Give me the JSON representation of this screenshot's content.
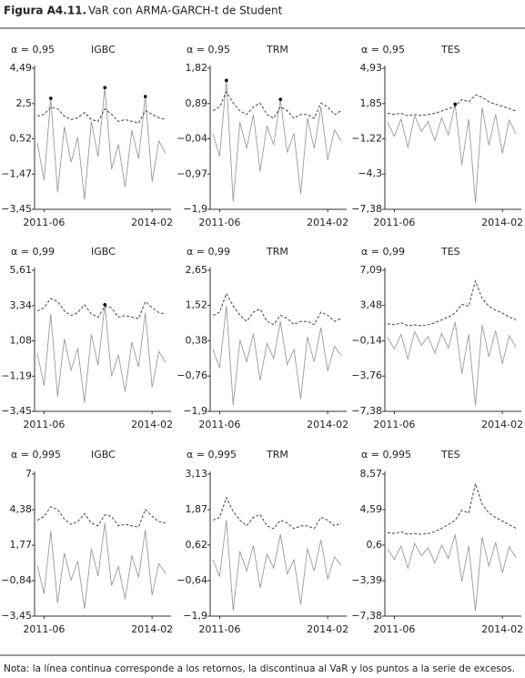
{
  "figure_label": "Figura A4.11.",
  "title": "VaR con ARMA-GARCH-t de Student",
  "note": "Nota: la línea continua corresponde a los retornos, la discontinua al VaR y los puntos a la serie de excesos.",
  "chart_data": [
    {
      "type": "line",
      "alpha_label": "α = 0,95",
      "title": "IGBC",
      "categories": [
        null,
        "2011-06",
        null,
        null,
        null,
        null,
        null,
        null,
        null,
        null,
        null,
        null,
        null,
        null,
        null,
        null,
        null,
        "2014-02",
        null,
        null
      ],
      "ylim": [
        -3.45,
        4.49
      ],
      "yticks": [
        {
          "value": -3.45,
          "label": "−3,45"
        },
        {
          "value": -1.47,
          "label": "−1,47"
        },
        {
          "value": 0.52,
          "label": "0,52"
        },
        {
          "value": 2.5,
          "label": "2,5"
        },
        {
          "value": 4.49,
          "label": "4,49"
        }
      ],
      "series": [
        {
          "color": "#9a9a9a",
          "style": "solid",
          "values": [
            0.3,
            -1.8,
            2.8,
            -2.5,
            1.2,
            -0.8,
            0.6,
            -2.9,
            1.5,
            -0.5,
            3.4,
            -1.2,
            0.2,
            -2.2,
            1.0,
            -0.6,
            2.9,
            -1.9,
            0.4,
            -0.3
          ]
        },
        {
          "color": "#444444",
          "style": "dashed",
          "values": [
            1.8,
            1.9,
            2.3,
            2.2,
            1.8,
            1.6,
            1.7,
            2.0,
            1.6,
            1.5,
            2.2,
            1.9,
            1.5,
            1.6,
            1.5,
            1.4,
            2.1,
            1.9,
            1.7,
            1.6
          ]
        },
        {
          "color": "#000000",
          "style": "points",
          "values": [
            null,
            null,
            2.8,
            null,
            null,
            null,
            null,
            null,
            null,
            null,
            3.4,
            null,
            null,
            null,
            null,
            null,
            2.9,
            null,
            null,
            null
          ]
        }
      ]
    },
    {
      "type": "line",
      "alpha_label": "α = 0,95",
      "title": "TRM",
      "categories": [
        null,
        "2011-06",
        null,
        null,
        null,
        null,
        null,
        null,
        null,
        null,
        null,
        null,
        null,
        null,
        null,
        null,
        null,
        "2014-02",
        null,
        null
      ],
      "ylim": [
        -1.9,
        1.82
      ],
      "yticks": [
        {
          "value": -1.9,
          "label": "−1,9"
        },
        {
          "value": -0.97,
          "label": "−0,97"
        },
        {
          "value": -0.04,
          "label": "−0,04"
        },
        {
          "value": 0.89,
          "label": "0,89"
        },
        {
          "value": 1.82,
          "label": "1,82"
        }
      ],
      "series": [
        {
          "color": "#9a9a9a",
          "style": "solid",
          "values": [
            0.1,
            -0.5,
            1.5,
            -1.7,
            0.4,
            -0.3,
            0.6,
            -0.9,
            0.3,
            -0.2,
            1.0,
            -0.4,
            0.1,
            -1.5,
            0.5,
            -0.3,
            0.8,
            -0.6,
            0.2,
            -0.1
          ]
        },
        {
          "color": "#444444",
          "style": "dashed",
          "values": [
            0.7,
            0.8,
            1.2,
            0.9,
            0.7,
            0.6,
            0.8,
            0.9,
            0.6,
            0.5,
            0.8,
            0.7,
            0.5,
            0.6,
            0.6,
            0.5,
            0.9,
            0.8,
            0.6,
            0.7
          ]
        },
        {
          "color": "#000000",
          "style": "points",
          "values": [
            null,
            null,
            1.5,
            null,
            null,
            null,
            null,
            null,
            null,
            null,
            1.0,
            null,
            null,
            null,
            null,
            null,
            null,
            null,
            null,
            null
          ]
        }
      ]
    },
    {
      "type": "line",
      "alpha_label": "α = 0,95",
      "title": "TES",
      "categories": [
        null,
        "2011-06",
        null,
        null,
        null,
        null,
        null,
        null,
        null,
        null,
        null,
        null,
        null,
        null,
        null,
        null,
        null,
        "2014-02",
        null,
        null
      ],
      "ylim": [
        -7.38,
        4.93
      ],
      "yticks": [
        {
          "value": -7.38,
          "label": "−7,38"
        },
        {
          "value": -4.3,
          "label": "−4,3"
        },
        {
          "value": -1.22,
          "label": "−1,22"
        },
        {
          "value": 1.85,
          "label": "1,85"
        },
        {
          "value": 4.93,
          "label": "4,93"
        }
      ],
      "series": [
        {
          "color": "#9a9a9a",
          "style": "solid",
          "values": [
            0.2,
            -1.0,
            0.5,
            -2.0,
            0.8,
            -0.6,
            0.3,
            -1.4,
            0.6,
            -0.9,
            1.8,
            -3.5,
            0.5,
            -6.8,
            1.5,
            -1.8,
            0.9,
            -2.5,
            0.4,
            -0.8
          ]
        },
        {
          "color": "#444444",
          "style": "dashed",
          "values": [
            1.0,
            0.9,
            1.0,
            0.8,
            0.9,
            0.8,
            0.9,
            1.0,
            1.2,
            1.4,
            1.6,
            2.2,
            2.0,
            2.6,
            2.4,
            2.0,
            1.8,
            1.6,
            1.4,
            1.2
          ]
        },
        {
          "color": "#000000",
          "style": "points",
          "values": [
            null,
            null,
            null,
            null,
            null,
            null,
            null,
            null,
            null,
            null,
            1.8,
            null,
            null,
            null,
            null,
            null,
            null,
            null,
            null,
            null
          ]
        }
      ]
    },
    {
      "type": "line",
      "alpha_label": "α = 0,99",
      "title": "IGBC",
      "categories": [
        null,
        "2011-06",
        null,
        null,
        null,
        null,
        null,
        null,
        null,
        null,
        null,
        null,
        null,
        null,
        null,
        null,
        null,
        "2014-02",
        null,
        null
      ],
      "ylim": [
        -3.45,
        5.61
      ],
      "yticks": [
        {
          "value": -3.45,
          "label": "−3,45"
        },
        {
          "value": -1.19,
          "label": "−1,19"
        },
        {
          "value": 1.08,
          "label": "1,08"
        },
        {
          "value": 3.34,
          "label": "3,34"
        },
        {
          "value": 5.61,
          "label": "5,61"
        }
      ],
      "series": [
        {
          "color": "#9a9a9a",
          "style": "solid",
          "values": [
            0.3,
            -1.8,
            2.8,
            -2.5,
            1.2,
            -0.8,
            0.6,
            -2.9,
            1.5,
            -0.5,
            3.4,
            -1.2,
            0.2,
            -2.2,
            1.0,
            -0.6,
            2.9,
            -1.9,
            0.4,
            -0.3
          ]
        },
        {
          "color": "#444444",
          "style": "dashed",
          "values": [
            3.0,
            3.2,
            3.8,
            3.6,
            3.0,
            2.7,
            2.9,
            3.4,
            2.8,
            2.6,
            3.3,
            3.2,
            2.6,
            2.7,
            2.6,
            2.5,
            3.6,
            3.2,
            2.9,
            2.8
          ]
        },
        {
          "color": "#000000",
          "style": "points",
          "values": [
            null,
            null,
            null,
            null,
            null,
            null,
            null,
            null,
            null,
            null,
            3.4,
            null,
            null,
            null,
            null,
            null,
            null,
            null,
            null,
            null
          ]
        }
      ]
    },
    {
      "type": "line",
      "alpha_label": "α = 0,99",
      "title": "TRM",
      "categories": [
        null,
        "2011-06",
        null,
        null,
        null,
        null,
        null,
        null,
        null,
        null,
        null,
        null,
        null,
        null,
        null,
        null,
        null,
        "2014-02",
        null,
        null
      ],
      "ylim": [
        -1.9,
        2.65
      ],
      "yticks": [
        {
          "value": -1.9,
          "label": "−1,9"
        },
        {
          "value": -0.76,
          "label": "−0,76"
        },
        {
          "value": 0.38,
          "label": "0,38"
        },
        {
          "value": 1.52,
          "label": "1,52"
        },
        {
          "value": 2.65,
          "label": "2,65"
        }
      ],
      "series": [
        {
          "color": "#9a9a9a",
          "style": "solid",
          "values": [
            0.1,
            -0.5,
            1.5,
            -1.7,
            0.4,
            -0.3,
            0.6,
            -0.9,
            0.3,
            -0.2,
            1.0,
            -0.4,
            0.1,
            -1.5,
            0.5,
            -0.3,
            0.8,
            -0.6,
            0.2,
            -0.1
          ]
        },
        {
          "color": "#444444",
          "style": "dashed",
          "values": [
            1.2,
            1.3,
            1.9,
            1.5,
            1.2,
            1.0,
            1.3,
            1.4,
            1.0,
            0.9,
            1.2,
            1.1,
            0.9,
            1.0,
            1.0,
            0.9,
            1.3,
            1.2,
            1.0,
            1.1
          ]
        }
      ]
    },
    {
      "type": "line",
      "alpha_label": "α = 0,99",
      "title": "TES",
      "categories": [
        null,
        "2011-06",
        null,
        null,
        null,
        null,
        null,
        null,
        null,
        null,
        null,
        null,
        null,
        null,
        null,
        null,
        null,
        "2014-02",
        null,
        null
      ],
      "ylim": [
        -7.38,
        7.09
      ],
      "yticks": [
        {
          "value": -7.38,
          "label": "−7,38"
        },
        {
          "value": -3.76,
          "label": "−3,76"
        },
        {
          "value": -0.14,
          "label": "−0,14"
        },
        {
          "value": 3.48,
          "label": "3,48"
        },
        {
          "value": 7.09,
          "label": "7,09"
        }
      ],
      "series": [
        {
          "color": "#9a9a9a",
          "style": "solid",
          "values": [
            0.2,
            -1.0,
            0.5,
            -2.0,
            0.8,
            -0.6,
            0.3,
            -1.4,
            0.6,
            -0.9,
            1.8,
            -3.5,
            0.5,
            -6.8,
            1.5,
            -1.8,
            0.9,
            -2.5,
            0.4,
            -0.8
          ]
        },
        {
          "color": "#444444",
          "style": "dashed",
          "values": [
            1.6,
            1.5,
            1.7,
            1.4,
            1.5,
            1.4,
            1.5,
            1.7,
            2.0,
            2.3,
            2.7,
            3.6,
            3.4,
            6.0,
            4.2,
            3.4,
            3.0,
            2.7,
            2.3,
            2.0
          ]
        }
      ]
    },
    {
      "type": "line",
      "alpha_label": "α = 0,995",
      "title": "IGBC",
      "categories": [
        null,
        "2011-06",
        null,
        null,
        null,
        null,
        null,
        null,
        null,
        null,
        null,
        null,
        null,
        null,
        null,
        null,
        null,
        "2014-02",
        null,
        null
      ],
      "ylim": [
        -3.45,
        7
      ],
      "yticks": [
        {
          "value": -3.45,
          "label": "−3,45"
        },
        {
          "value": -0.84,
          "label": "−0,84"
        },
        {
          "value": 1.77,
          "label": "1,77"
        },
        {
          "value": 4.38,
          "label": "4,38"
        },
        7
      ],
      "series": [
        {
          "color": "#9a9a9a",
          "style": "solid",
          "values": [
            0.3,
            -1.8,
            2.8,
            -2.5,
            1.2,
            -0.8,
            0.6,
            -2.9,
            1.5,
            -0.5,
            3.4,
            -1.2,
            0.2,
            -2.2,
            1.0,
            -0.6,
            2.9,
            -1.9,
            0.4,
            -0.3
          ]
        },
        {
          "color": "#444444",
          "style": "dashed",
          "values": [
            3.6,
            3.9,
            4.6,
            4.4,
            3.7,
            3.3,
            3.5,
            4.1,
            3.4,
            3.2,
            4.0,
            3.9,
            3.2,
            3.3,
            3.2,
            3.1,
            4.4,
            3.9,
            3.5,
            3.4
          ]
        }
      ]
    },
    {
      "type": "line",
      "alpha_label": "α = 0,995",
      "title": "TRM",
      "categories": [
        null,
        "2011-06",
        null,
        null,
        null,
        null,
        null,
        null,
        null,
        null,
        null,
        null,
        null,
        null,
        null,
        null,
        null,
        "2014-02",
        null,
        null
      ],
      "ylim": [
        -1.9,
        3.13
      ],
      "yticks": [
        {
          "value": -1.9,
          "label": "−1,9"
        },
        {
          "value": -0.64,
          "label": "−0,64"
        },
        {
          "value": 0.62,
          "label": "0,62"
        },
        {
          "value": 1.87,
          "label": "1,87"
        },
        {
          "value": 3.13,
          "label": "3,13"
        }
      ],
      "series": [
        {
          "color": "#9a9a9a",
          "style": "solid",
          "values": [
            0.1,
            -0.5,
            1.5,
            -1.7,
            0.4,
            -0.3,
            0.6,
            -0.9,
            0.3,
            -0.2,
            1.0,
            -0.4,
            0.1,
            -1.5,
            0.5,
            -0.3,
            0.8,
            -0.6,
            0.2,
            -0.1
          ]
        },
        {
          "color": "#444444",
          "style": "dashed",
          "values": [
            1.5,
            1.6,
            2.3,
            1.8,
            1.5,
            1.3,
            1.6,
            1.7,
            1.3,
            1.2,
            1.5,
            1.4,
            1.2,
            1.3,
            1.3,
            1.2,
            1.6,
            1.5,
            1.3,
            1.4
          ]
        }
      ]
    },
    {
      "type": "line",
      "alpha_label": "α = 0,995",
      "title": "TES",
      "categories": [
        null,
        "2011-06",
        null,
        null,
        null,
        null,
        null,
        null,
        null,
        null,
        null,
        null,
        null,
        null,
        null,
        null,
        null,
        "2014-02",
        null,
        null
      ],
      "ylim": [
        -7.38,
        8.57
      ],
      "yticks": [
        {
          "value": -7.38,
          "label": "−7,38"
        },
        {
          "value": -3.39,
          "label": "−3,39"
        },
        {
          "value": 0.6,
          "label": "0,6"
        },
        {
          "value": 4.59,
          "label": "4,59"
        },
        {
          "value": 8.57,
          "label": "8,57"
        }
      ],
      "series": [
        {
          "color": "#9a9a9a",
          "style": "solid",
          "values": [
            0.2,
            -1.0,
            0.5,
            -2.0,
            0.8,
            -0.6,
            0.3,
            -1.4,
            0.6,
            -0.9,
            1.8,
            -3.5,
            0.5,
            -6.8,
            1.5,
            -1.8,
            0.9,
            -2.5,
            0.4,
            -0.8
          ]
        },
        {
          "color": "#444444",
          "style": "dashed",
          "values": [
            2.0,
            1.9,
            2.1,
            1.8,
            1.9,
            1.8,
            1.9,
            2.1,
            2.5,
            2.9,
            3.4,
            4.5,
            4.2,
            7.5,
            5.2,
            4.2,
            3.7,
            3.3,
            2.9,
            2.5
          ]
        }
      ]
    }
  ]
}
